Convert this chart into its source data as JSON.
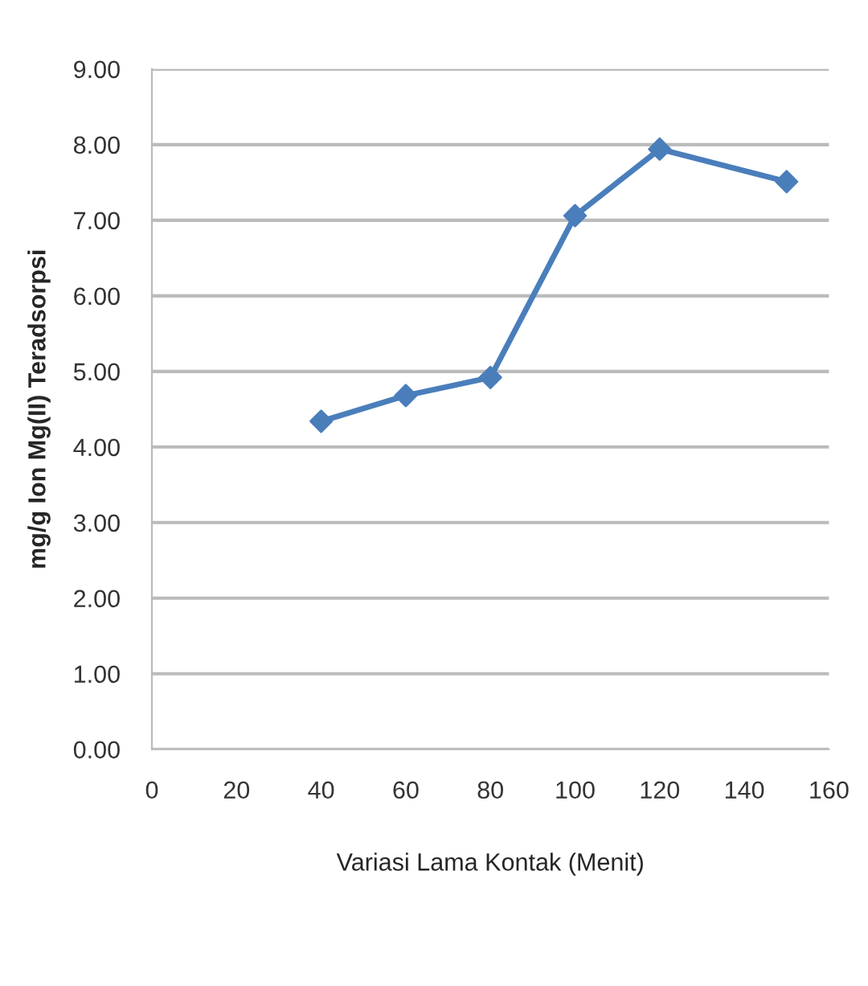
{
  "chart_data": {
    "type": "line",
    "xlabel": "Variasi Lama Kontak (Menit)",
    "ylabel": "mg/g Ion Mg(II) Teradsorpsi",
    "x": [
      40,
      60,
      80,
      100,
      120,
      150
    ],
    "series": [
      {
        "color": "#4a7ebb",
        "values": [
          4.34,
          4.68,
          4.92,
          7.06,
          7.94,
          7.51
        ]
      }
    ],
    "xlim": [
      0,
      160
    ],
    "xticks": [
      0,
      20,
      40,
      60,
      80,
      100,
      120,
      140,
      160
    ],
    "ylim": [
      0,
      9
    ],
    "yticks": [
      {
        "value": 0,
        "label": "0.00"
      },
      {
        "value": 1,
        "label": "1.00"
      },
      {
        "value": 2,
        "label": "2.00"
      },
      {
        "value": 3,
        "label": "3.00"
      },
      {
        "value": 4,
        "label": "4.00"
      },
      {
        "value": 5,
        "label": "5.00"
      },
      {
        "value": 6,
        "label": "6.00"
      },
      {
        "value": 7,
        "label": "7.00"
      },
      {
        "value": 8,
        "label": "8.00"
      },
      {
        "value": 9,
        "label": "9.00"
      }
    ],
    "grid": "y",
    "marker": "diamond",
    "line_style": "solid"
  }
}
